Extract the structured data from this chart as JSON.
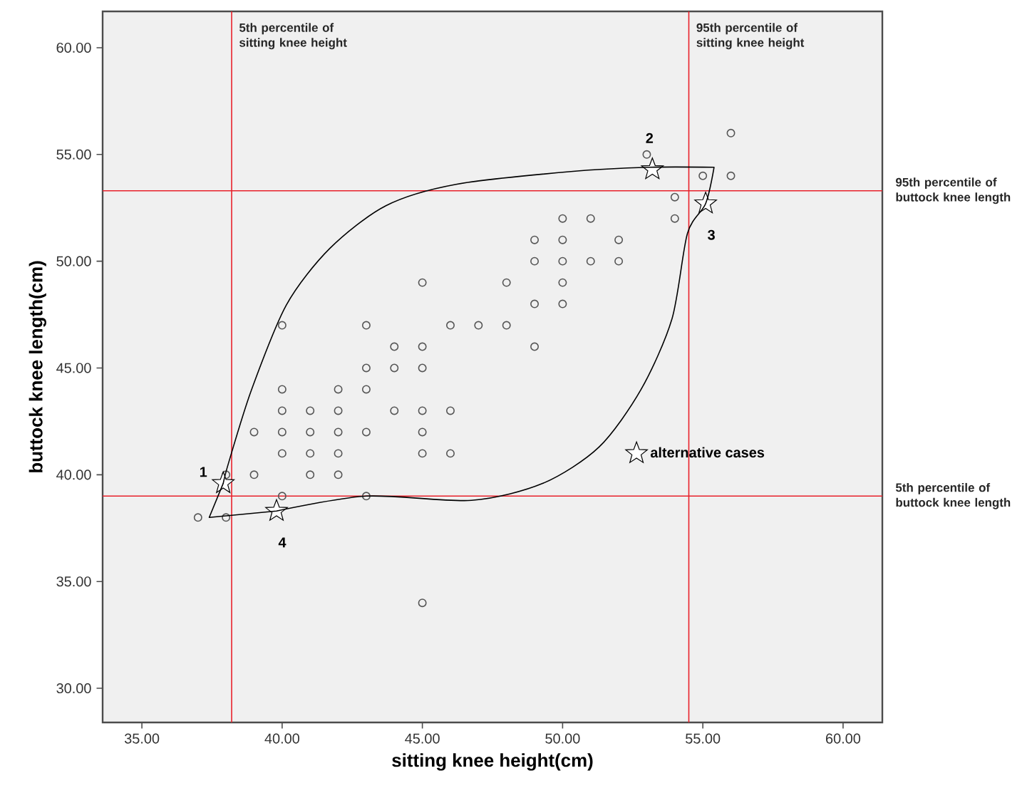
{
  "chart_data": {
    "type": "scatter",
    "xlabel": "sitting knee height(cm)",
    "ylabel": "buttock knee length(cm)",
    "xlim": [
      33.6,
      61.4
    ],
    "ylim": [
      28.4,
      61.7
    ],
    "xticks": [
      {
        "value": 35,
        "label": "35.00"
      },
      {
        "value": 40,
        "label": "40.00"
      },
      {
        "value": 45,
        "label": "45.00"
      },
      {
        "value": 50,
        "label": "50.00"
      },
      {
        "value": 55,
        "label": "55.00"
      },
      {
        "value": 60,
        "label": "60.00"
      }
    ],
    "yticks": [
      {
        "value": 30,
        "label": "30.00"
      },
      {
        "value": 35,
        "label": "35.00"
      },
      {
        "value": 40,
        "label": "40.00"
      },
      {
        "value": 45,
        "label": "45.00"
      },
      {
        "value": 50,
        "label": "50.00"
      },
      {
        "value": 55,
        "label": "55.00"
      },
      {
        "value": 60,
        "label": "60.00"
      }
    ],
    "legend": "right",
    "series": [
      {
        "marker": "circle",
        "color": "#555555",
        "x": [
          56,
          53,
          55,
          56,
          54,
          50,
          51,
          54,
          49,
          50,
          52,
          49,
          50,
          51,
          52,
          45,
          48,
          50,
          49,
          50,
          40,
          43,
          46,
          47,
          48,
          44,
          45,
          49,
          43,
          44,
          45,
          40,
          42,
          43,
          40,
          41,
          42,
          44,
          45,
          46,
          39,
          40,
          41,
          42,
          43,
          45,
          40,
          41,
          42,
          45,
          46,
          38,
          39,
          41,
          42,
          40,
          43,
          37,
          38,
          45
        ],
        "values": [
          56,
          55,
          54,
          54,
          53,
          52,
          52,
          52,
          51,
          51,
          51,
          50,
          50,
          50,
          50,
          49,
          49,
          49,
          48,
          48,
          47,
          47,
          47,
          47,
          47,
          46,
          46,
          46,
          45,
          45,
          45,
          44,
          44,
          44,
          43,
          43,
          43,
          43,
          43,
          43,
          42,
          42,
          42,
          42,
          42,
          42,
          41,
          41,
          41,
          41,
          41,
          40,
          40,
          40,
          40,
          39,
          39,
          38,
          38,
          34
        ]
      },
      {
        "marker": "star",
        "name": "alternative cases",
        "color": "#000000",
        "x": [
          37.9,
          53.2,
          55.1,
          39.8
        ],
        "values": [
          39.6,
          54.3,
          52.7,
          38.3
        ]
      }
    ],
    "ref_lines": [
      {
        "axis": "x",
        "value": 38.2,
        "label": "5th percentile of sitting knee height",
        "color": "#e8202a"
      },
      {
        "axis": "x",
        "value": 54.5,
        "label": "95th percentile of sitting knee height",
        "color": "#e8202a"
      },
      {
        "axis": "y",
        "value": 53.3,
        "label": "95th percentile of buttock knee length",
        "color": "#e8202a"
      },
      {
        "axis": "y",
        "value": 39.0,
        "label": "5th percentile of buttock knee length",
        "color": "#e8202a"
      }
    ],
    "annotations": [
      {
        "text": "1",
        "x": 37.9,
        "y": 39.6
      },
      {
        "text": "2",
        "x": 53.2,
        "y": 54.3
      },
      {
        "text": "3",
        "x": 55.1,
        "y": 52.7
      },
      {
        "text": "4",
        "x": 39.8,
        "y": 38.3
      }
    ]
  }
}
